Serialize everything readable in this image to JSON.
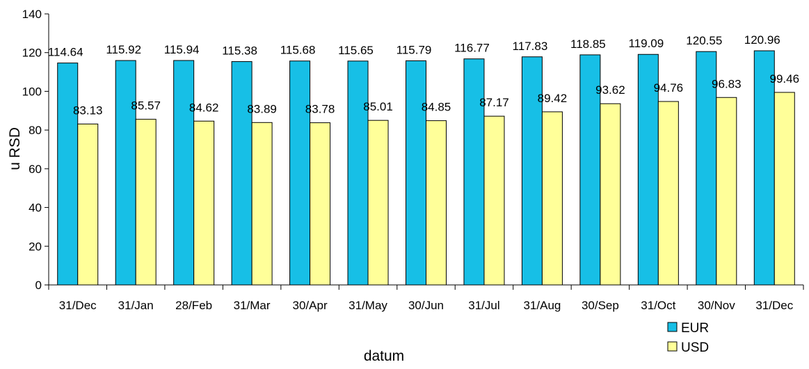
{
  "chart_data": {
    "type": "bar",
    "categories": [
      "31/Dec",
      "31/Jan",
      "28/Feb",
      "31/Mar",
      "30/Apr",
      "31/May",
      "30/Jun",
      "31/Jul",
      "31/Aug",
      "30/Sep",
      "31/Oct",
      "30/Nov",
      "31/Dec"
    ],
    "series": [
      {
        "name": "EUR",
        "color": "#17BFE6",
        "values": [
          114.64,
          115.92,
          115.94,
          115.38,
          115.68,
          115.65,
          115.79,
          116.77,
          117.83,
          118.85,
          119.09,
          120.55,
          120.96
        ]
      },
      {
        "name": "USD",
        "color": "#FFFF99",
        "values": [
          83.13,
          85.57,
          84.62,
          83.89,
          83.78,
          85.01,
          84.85,
          87.17,
          89.42,
          93.62,
          94.76,
          96.83,
          99.46
        ]
      }
    ],
    "data_labels": {
      "EUR": [
        "114.64",
        "115.92",
        "115.94",
        "115.38",
        "115.68",
        "115.65",
        "115.79",
        "116.77",
        "117.83",
        "118.85",
        "119.09",
        "120.55",
        "120.96"
      ],
      "USD": [
        "83.13",
        "85.57",
        "84.62",
        "83.89",
        "83.78",
        "85.01",
        "84.85",
        "87.17",
        "89.42",
        "93.62",
        "94.76",
        "96.83",
        "99.46"
      ]
    },
    "xlabel": "datum",
    "ylabel": "u RSD",
    "ylim": [
      0,
      140
    ],
    "yticks": [
      0,
      20,
      40,
      60,
      80,
      100,
      120,
      140
    ],
    "grid": false,
    "legend": {
      "position": "bottom-right",
      "entries": [
        "EUR",
        "USD"
      ]
    }
  }
}
